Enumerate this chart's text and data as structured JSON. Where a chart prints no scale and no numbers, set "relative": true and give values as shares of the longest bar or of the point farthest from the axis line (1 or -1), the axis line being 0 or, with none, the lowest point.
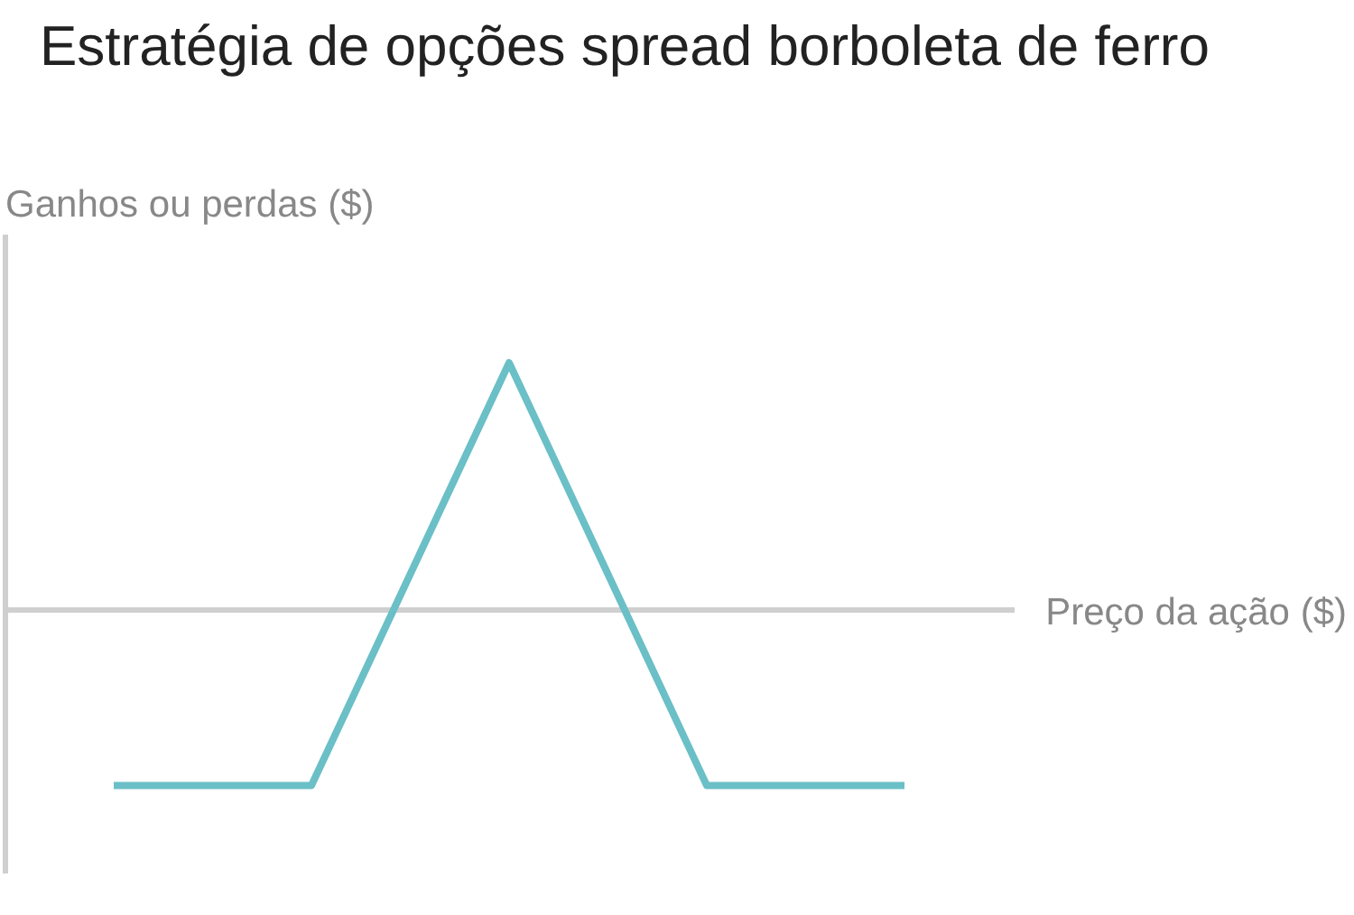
{
  "chart_data": {
    "type": "line",
    "title": "Estratégia de opções spread borboleta de ferro",
    "ylabel": "Ganhos ou perdas ($)",
    "xlabel": "Preço da ação ($)",
    "relative": true,
    "categories": [
      null,
      null,
      null,
      null,
      null
    ],
    "values": [
      -0.71,
      -0.71,
      1,
      -0.71,
      -0.71
    ],
    "color": "#6bbfc6"
  }
}
